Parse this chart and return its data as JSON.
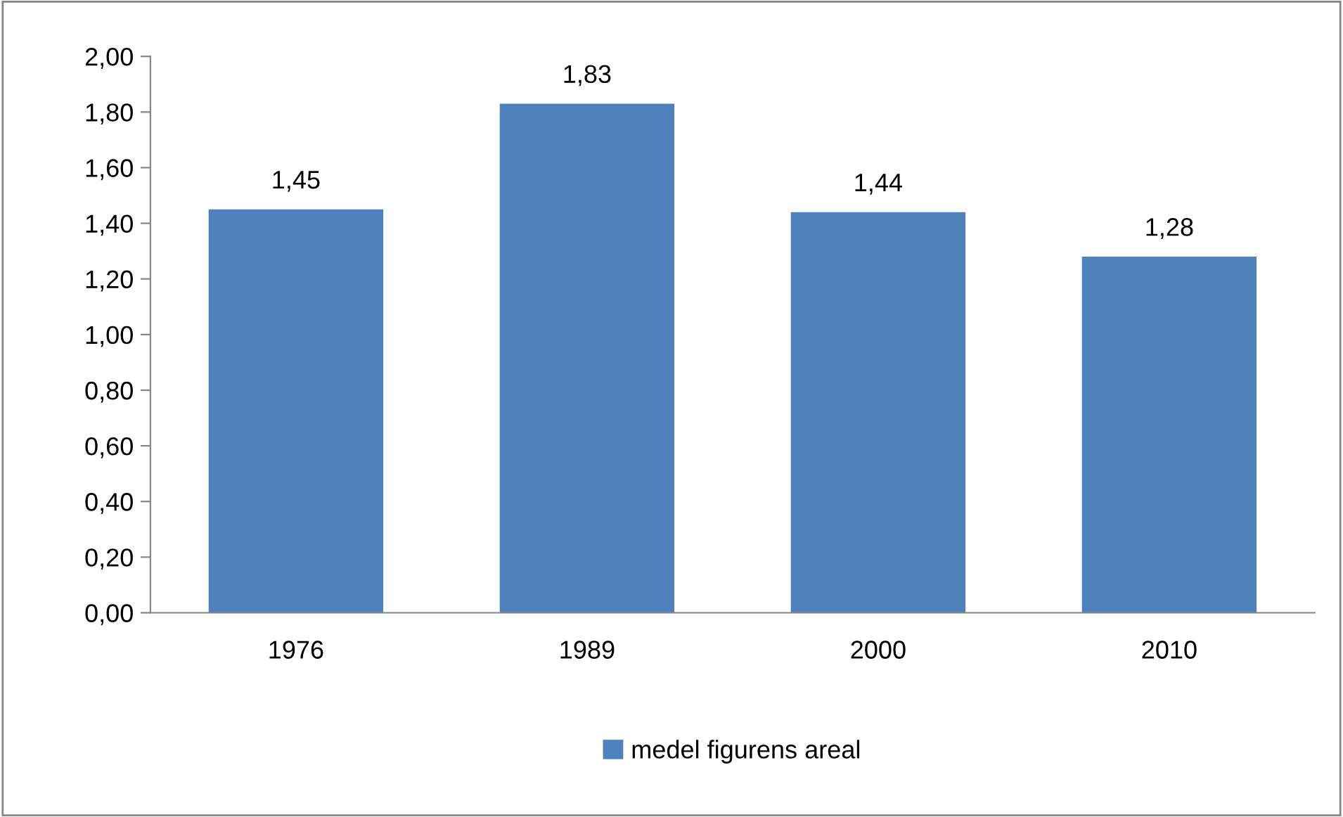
{
  "chart_data": {
    "type": "bar",
    "categories": [
      "1976",
      "1989",
      "2000",
      "2010"
    ],
    "series": [
      {
        "name": "medel figurens areal",
        "color": "#4f81bd",
        "values": [
          1.45,
          1.83,
          1.44,
          1.28
        ],
        "value_labels": [
          "1,45",
          "1,83",
          "1,44",
          "1,28"
        ]
      }
    ],
    "ylim": [
      0,
      2
    ],
    "yticks": [
      {
        "value": 0,
        "label": "0,00"
      },
      {
        "value": 0.2,
        "label": "0,20"
      },
      {
        "value": 0.4,
        "label": "0,40"
      },
      {
        "value": 0.6,
        "label": "0,60"
      },
      {
        "value": 0.8,
        "label": "0,80"
      },
      {
        "value": 1.0,
        "label": "1,00"
      },
      {
        "value": 1.2,
        "label": "1,20"
      },
      {
        "value": 1.4,
        "label": "1,40"
      },
      {
        "value": 1.6,
        "label": "1,60"
      },
      {
        "value": 1.8,
        "label": "1,80"
      },
      {
        "value": 2.0,
        "label": "2,00"
      }
    ],
    "grid": false,
    "legend": "bottom"
  }
}
